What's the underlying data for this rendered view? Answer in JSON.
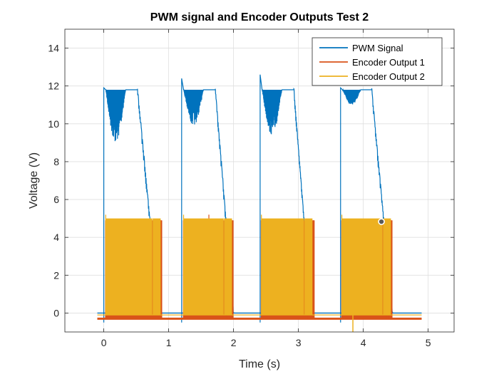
{
  "chart_data": {
    "type": "line",
    "title": "PWM signal and Encoder Outputs Test 2",
    "xlabel": "Time (s)",
    "ylabel": "Voltage (V)",
    "xlim": [
      -0.6,
      5.4
    ],
    "ylim": [
      -1,
      15
    ],
    "xticks": [
      0,
      1,
      2,
      3,
      4,
      5
    ],
    "yticks": [
      0,
      2,
      4,
      6,
      8,
      10,
      12,
      14
    ],
    "grid": true,
    "legend_position": "top-right",
    "series": [
      {
        "name": "PWM Signal",
        "color": "#0072BD",
        "pulses": [
          {
            "start": 0.0,
            "rise_end": 0.03,
            "plateau_end": 0.52,
            "fall_end": 0.85,
            "high": 11.8,
            "low_min": 9.0,
            "peak": 11.9
          },
          {
            "start": 1.2,
            "rise_end": 1.23,
            "plateau_end": 1.72,
            "fall_end": 2.0,
            "high": 11.8,
            "low_min": 9.9,
            "peak": 12.4
          },
          {
            "start": 2.41,
            "rise_end": 2.44,
            "plateau_end": 2.93,
            "fall_end": 3.2,
            "high": 11.8,
            "low_min": 9.4,
            "peak": 12.6
          },
          {
            "start": 3.65,
            "rise_end": 3.68,
            "plateau_end": 4.13,
            "fall_end": 4.45,
            "high": 11.8,
            "low_min": 11.0,
            "peak": 11.9
          }
        ],
        "baseline": 0.0,
        "x_range": [
          -0.1,
          4.9
        ]
      },
      {
        "name": "Encoder Output 1",
        "color": "#D95319",
        "blocks": [
          [
            0.02,
            0.9
          ],
          [
            1.22,
            2.0
          ],
          [
            2.42,
            3.25
          ],
          [
            3.66,
            4.45
          ]
        ],
        "high": 4.9,
        "low": -0.3
      },
      {
        "name": "Encoder Output 2",
        "color": "#EDB120",
        "blocks": [
          [
            0.03,
            0.88
          ],
          [
            1.23,
            1.98
          ],
          [
            2.43,
            3.22
          ],
          [
            3.67,
            4.43
          ]
        ],
        "high": 5.0,
        "low": -0.1
      }
    ],
    "marker": {
      "x": 4.28,
      "y": 4.83
    }
  }
}
